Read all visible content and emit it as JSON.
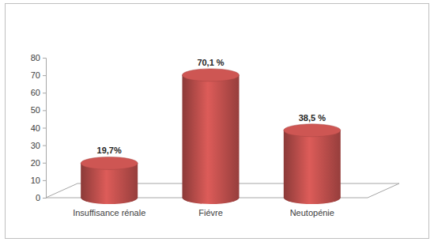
{
  "chart_data": {
    "type": "bar",
    "categories": [
      "Insuffisance rénale",
      "Fiévre",
      "Neutopénie"
    ],
    "values": [
      19.7,
      70.1,
      38.5
    ],
    "value_labels": [
      "19,7%",
      "70,1 %",
      "38,5 %"
    ],
    "data_labels": true,
    "color": "#c0504d",
    "ylim": [
      0,
      80
    ],
    "yticks": [
      0,
      10,
      20,
      30,
      40,
      50,
      60,
      70,
      80
    ],
    "grid": false
  }
}
